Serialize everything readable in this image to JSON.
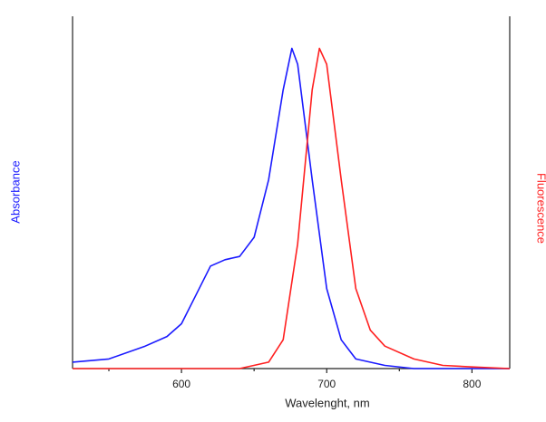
{
  "chart_data": {
    "type": "line",
    "xlabel": "Wavelenght, nm",
    "ylabel": "Absorbance",
    "y2label": "Fluorescence",
    "ylabel_color": "#1a1aff",
    "y2label_color": "#ff2020",
    "xlim": [
      525,
      826
    ],
    "xticks": [
      600,
      700,
      800
    ],
    "xminorticks": [
      550,
      650,
      750
    ],
    "ylim": [
      0,
      1.1
    ],
    "y2lim": [
      0,
      1.1
    ],
    "series": [
      {
        "color": "#1a1aff",
        "x": [
          525,
          550,
          575,
          590,
          600,
          610,
          620,
          630,
          640,
          650,
          660,
          670,
          676,
          680,
          690,
          700,
          710,
          720,
          740,
          760,
          800,
          826
        ],
        "values": [
          0.02,
          0.03,
          0.07,
          0.1,
          0.14,
          0.23,
          0.32,
          0.34,
          0.35,
          0.41,
          0.59,
          0.87,
          1.0,
          0.95,
          0.59,
          0.25,
          0.09,
          0.03,
          0.01,
          0,
          0,
          0
        ]
      },
      {
        "color": "#ff2020",
        "axis": "y2",
        "x": [
          525,
          640,
          660,
          670,
          680,
          690,
          695,
          700,
          710,
          720,
          730,
          740,
          760,
          780,
          800,
          826
        ],
        "values": [
          0,
          0,
          0.02,
          0.09,
          0.39,
          0.87,
          1.0,
          0.95,
          0.59,
          0.25,
          0.12,
          0.07,
          0.03,
          0.01,
          0.005,
          0
        ]
      }
    ]
  }
}
